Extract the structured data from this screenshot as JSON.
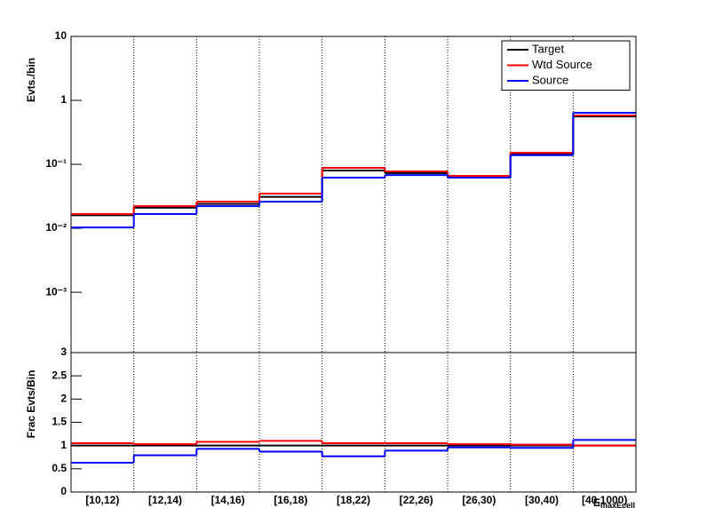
{
  "chart_data": [
    {
      "type": "step",
      "ylabel": "Evts./bin",
      "log_y": true,
      "grid_x": true,
      "ylim": [
        0.000114,
        10
      ],
      "yticks": [
        {
          "value": 10,
          "label": "10"
        },
        {
          "value": 1,
          "label": "1"
        },
        {
          "value": 0.1,
          "label": "10⁻¹"
        },
        {
          "value": 0.01,
          "label": "10⁻²"
        },
        {
          "value": 0.001,
          "label": "10⁻³"
        }
      ],
      "legend": "top-right",
      "series": [
        {
          "name": "Target",
          "color": "#000000",
          "values": [
            0.016,
            0.021,
            0.024,
            0.031,
            0.08,
            0.073,
            0.064,
            0.147,
            0.56
          ]
        },
        {
          "name": "Wtd Source",
          "color": "#ff0000",
          "values": [
            0.0167,
            0.0222,
            0.026,
            0.0348,
            0.088,
            0.0774,
            0.066,
            0.152,
            0.58
          ]
        },
        {
          "name": "Source",
          "color": "#0000ff",
          "values": [
            0.0103,
            0.0167,
            0.0222,
            0.026,
            0.062,
            0.068,
            0.062,
            0.139,
            0.64
          ]
        }
      ]
    },
    {
      "type": "step",
      "ylabel": "Frac Evts/Bin",
      "grid_x": true,
      "xlabel": "E",
      "xlabel_sub": "maxEcell",
      "categories": [
        "[10,12)",
        "[12,14)",
        "[14,16)",
        "[16,18)",
        "[18,22)",
        "[22,26)",
        "[26,30)",
        "[30,40)",
        "[40,1000)"
      ],
      "ylim": [
        0,
        3
      ],
      "yticks": [
        0,
        0.5,
        1,
        1.5,
        2,
        2.5,
        3
      ],
      "series": [
        {
          "color": "#000000",
          "values": [
            1,
            1,
            1,
            1,
            1,
            1,
            1,
            1,
            1
          ]
        },
        {
          "color": "#ff0000",
          "values": [
            1.05,
            1.03,
            1.08,
            1.1,
            1.05,
            1.05,
            1.03,
            1.02,
            1.0
          ]
        },
        {
          "color": "#0000ff",
          "values": [
            0.63,
            0.79,
            0.93,
            0.87,
            0.77,
            0.89,
            0.96,
            0.95,
            1.12
          ]
        }
      ]
    }
  ]
}
